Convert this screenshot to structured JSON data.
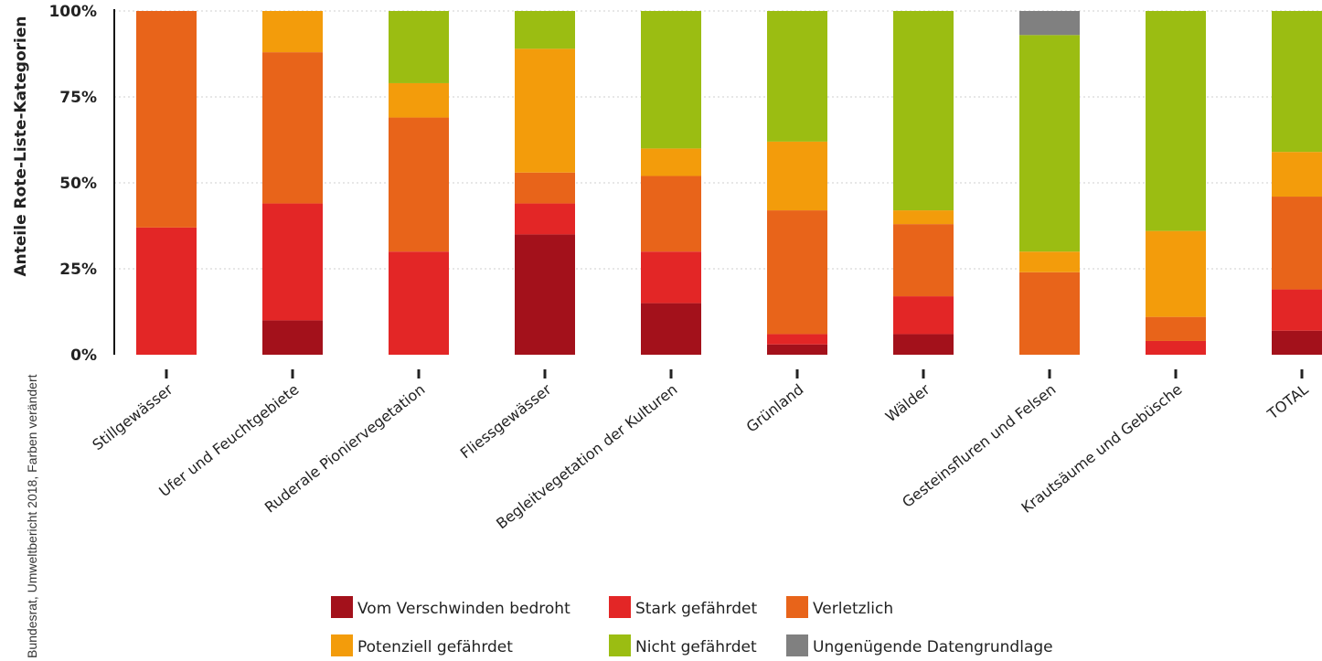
{
  "source_note": "Bundesrat, Umweltbericht 2018, Farben verändert",
  "chart_data": {
    "type": "bar",
    "stacked": true,
    "ylabel": "Anteile Rote-Liste-Kategorien",
    "ylim": [
      0,
      100
    ],
    "y_ticks": [
      {
        "value": 0,
        "label": "0%"
      },
      {
        "value": 25,
        "label": "25%"
      },
      {
        "value": 50,
        "label": "50%"
      },
      {
        "value": 75,
        "label": "75%"
      },
      {
        "value": 100,
        "label": "100%"
      }
    ],
    "grid": true,
    "legend_position": "bottom",
    "categories": [
      "Stillgewässer",
      "Ufer und Feuchtgebiete",
      "Ruderale Pioniervegetation",
      "Fliessgewässer",
      "Begleitvegetation der Kulturen",
      "Grünland",
      "Wälder",
      "Gesteinsfluren und Felsen",
      "Krautsäume und Gebüsche",
      "TOTAL"
    ],
    "series": [
      {
        "name": "Vom Verschwinden bedroht",
        "color": "#a3111b",
        "values": [
          0,
          10,
          0,
          35,
          15,
          3,
          6,
          0,
          0,
          7
        ]
      },
      {
        "name": "Stark gefährdet",
        "color": "#e32626",
        "values": [
          37,
          34,
          30,
          9,
          15,
          3,
          11,
          0,
          4,
          12
        ]
      },
      {
        "name": "Verletzlich",
        "color": "#e8641a",
        "values": [
          63,
          44,
          39,
          9,
          22,
          36,
          21,
          24,
          7,
          27
        ]
      },
      {
        "name": "Potenziell gefährdet",
        "color": "#f39c0b",
        "values": [
          0,
          12,
          10,
          36,
          8,
          20,
          4,
          6,
          25,
          13
        ]
      },
      {
        "name": "Nicht gefährdet",
        "color": "#9bbd12",
        "values": [
          0,
          0,
          21,
          11,
          40,
          38,
          58,
          63,
          64,
          41
        ]
      },
      {
        "name": "Ungenügende Datengrundlage",
        "color": "#808080",
        "values": [
          0,
          0,
          0,
          0,
          0,
          0,
          0,
          7,
          0,
          0
        ]
      }
    ]
  }
}
